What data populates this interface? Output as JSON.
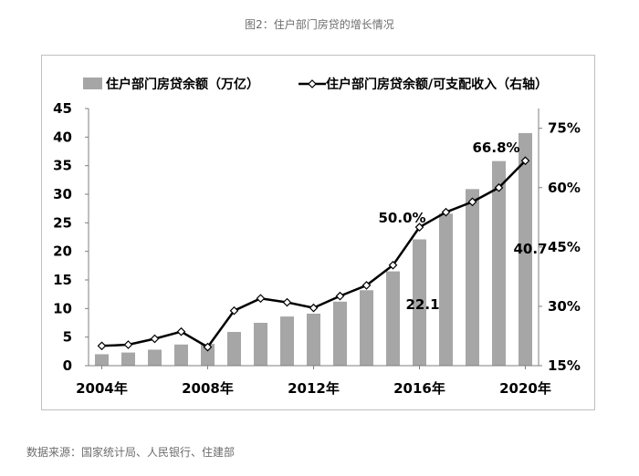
{
  "figure": {
    "title": "图2：住户部门房贷的增长情况",
    "source": "数据来源：国家统计局、人民银行、住建部"
  },
  "chart_data": {
    "type": "bar+line",
    "categories": [
      "2004",
      "2005",
      "2006",
      "2007",
      "2008",
      "2009",
      "2010",
      "2011",
      "2012",
      "2013",
      "2014",
      "2015",
      "2016",
      "2017",
      "2018",
      "2019",
      "2020"
    ],
    "x_tick_labels": [
      "2004年",
      "2008年",
      "2012年",
      "2016年",
      "2020年"
    ],
    "bar_series": {
      "name": "住户部门房贷余额（万亿）",
      "color": "#a6a6a6",
      "axis": "left",
      "values": [
        2.0,
        2.3,
        2.8,
        3.7,
        3.8,
        5.9,
        7.5,
        8.6,
        9.1,
        11.2,
        13.2,
        16.5,
        22.1,
        26.6,
        30.9,
        35.8,
        40.7
      ]
    },
    "line_series": {
      "name": "住户部门房贷余额/可支配收入（右轴）",
      "color": "#000000",
      "axis": "right",
      "values": [
        20.0,
        20.3,
        21.8,
        23.6,
        19.7,
        28.9,
        32.0,
        31.0,
        29.6,
        32.6,
        35.3,
        40.4,
        50.0,
        53.8,
        56.4,
        60.0,
        66.8
      ]
    },
    "left_axis": {
      "min": 0,
      "max": 45,
      "ticks": [
        "0",
        "5",
        "10",
        "15",
        "20",
        "25",
        "30",
        "35",
        "40",
        "45"
      ]
    },
    "right_axis": {
      "min": 15,
      "max": 80,
      "ticks": [
        "15%",
        "30%",
        "45%",
        "60%",
        "75%"
      ]
    },
    "annotations": [
      {
        "text": "50.0%",
        "year": "2016"
      },
      {
        "text": "66.8%",
        "year": "2020"
      },
      {
        "text": "22.1",
        "year": "2016"
      },
      {
        "text": "40.7",
        "year": "2020"
      }
    ],
    "legend_position": "top",
    "grid": false
  }
}
